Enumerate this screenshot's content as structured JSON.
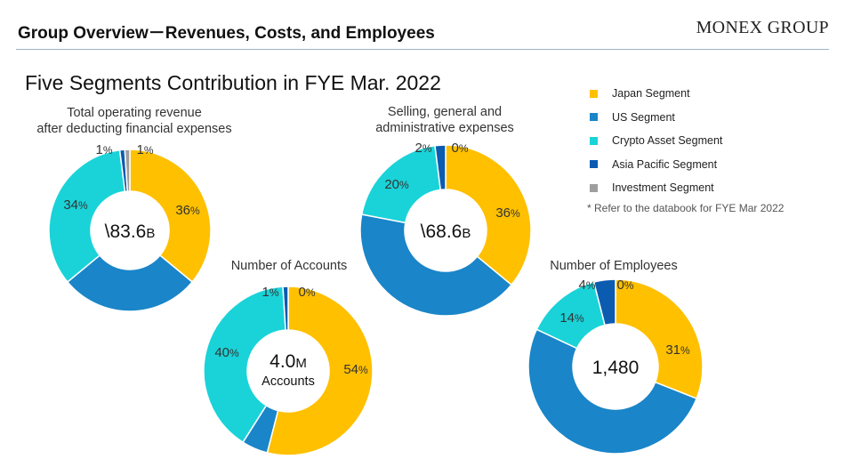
{
  "header": {
    "title": "Group Overview－Revenues, Costs, and Employees",
    "brand": "MONEX GROUP"
  },
  "subtitle": "Five Segments Contribution in FYE Mar. 2022",
  "note": "* Refer to the databook for FYE Mar 2022",
  "legend": [
    {
      "label": "Japan Segment",
      "color": "#FFC000"
    },
    {
      "label": "US Segment",
      "color": "#1A85C8"
    },
    {
      "label": "Crypto Asset Segment",
      "color": "#19D3D8"
    },
    {
      "label": "Asia Pacific Segment",
      "color": "#0B5BB0"
    },
    {
      "label": "Investment Segment",
      "color": "#9E9E9E"
    }
  ],
  "chart_data": [
    {
      "type": "pie",
      "title_lines": [
        "Total operating revenue",
        "after deducting financial expenses"
      ],
      "categories": [
        "Japan Segment",
        "US Segment",
        "Crypto Asset Segment",
        "Asia Pacific Segment",
        "Investment Segment"
      ],
      "values": [
        36,
        28,
        34,
        1,
        1
      ],
      "labels": [
        "36",
        "",
        "34",
        "1",
        "1"
      ],
      "unit": "%",
      "center_main": "\\83.6",
      "center_suffix": "B",
      "center_sub": ""
    },
    {
      "type": "pie",
      "title_lines": [
        "Selling, general and",
        "administrative expenses"
      ],
      "categories": [
        "Japan Segment",
        "US Segment",
        "Crypto Asset Segment",
        "Asia Pacific Segment",
        "Investment Segment"
      ],
      "values": [
        36,
        42,
        20,
        2,
        0
      ],
      "labels": [
        "36",
        "",
        "20",
        "2",
        "0"
      ],
      "unit": "%",
      "center_main": "\\68.6",
      "center_suffix": "B",
      "center_sub": ""
    },
    {
      "type": "pie",
      "title_lines": [
        "Number of Accounts"
      ],
      "categories": [
        "Japan Segment",
        "US Segment",
        "Crypto Asset Segment",
        "Asia Pacific Segment",
        "Investment Segment"
      ],
      "values": [
        54,
        5,
        40,
        1,
        0
      ],
      "labels": [
        "54",
        "",
        "40",
        "1",
        "0"
      ],
      "unit": "%",
      "center_main": "4.0",
      "center_suffix": "M",
      "center_sub": "Accounts"
    },
    {
      "type": "pie",
      "title_lines": [
        "Number of Employees"
      ],
      "categories": [
        "Japan Segment",
        "US Segment",
        "Crypto Asset Segment",
        "Asia Pacific Segment",
        "Investment Segment"
      ],
      "values": [
        31,
        51,
        14,
        4,
        0
      ],
      "labels": [
        "31",
        "",
        "14",
        "4",
        "0"
      ],
      "unit": "%",
      "center_main": "1,480",
      "center_suffix": "",
      "center_sub": ""
    }
  ]
}
